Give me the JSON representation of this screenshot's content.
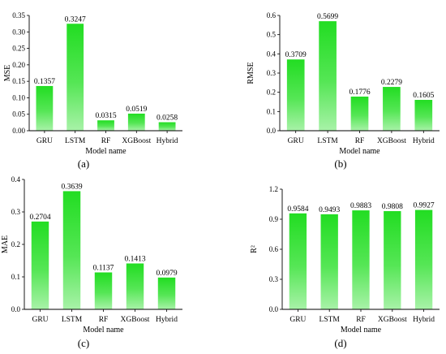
{
  "chart_data": [
    {
      "type": "bar",
      "panel_label": "(a)",
      "categories": [
        "GRU",
        "LSTM",
        "RF",
        "XGBoost",
        "Hybrid"
      ],
      "values": [
        0.1357,
        0.3247,
        0.0315,
        0.0519,
        0.0258
      ],
      "value_labels": [
        "0.1357",
        "0.3247",
        "0.0315",
        "0.0519",
        "0.0258"
      ],
      "ylabel": "MSE",
      "xlabel": "Model name",
      "ylim": [
        0,
        0.35
      ],
      "yticks": [
        0,
        0.05,
        0.1,
        0.15,
        0.2,
        0.25,
        0.3,
        0.35
      ],
      "ytick_labels": [
        "0.00",
        "0.05",
        "0.10",
        "0.15",
        "0.20",
        "0.25",
        "0.30",
        "0.35"
      ],
      "grid": false
    },
    {
      "type": "bar",
      "panel_label": "(b)",
      "categories": [
        "GRU",
        "LSTM",
        "RF",
        "XGBoost",
        "Hybrid"
      ],
      "values": [
        0.3709,
        0.5699,
        0.1776,
        0.2279,
        0.1605
      ],
      "value_labels": [
        "0.3709",
        "0.5699",
        "0.1776",
        "0.2279",
        "0.1605"
      ],
      "ylabel": "RMSE",
      "xlabel": "Model name",
      "ylim": [
        0,
        0.6
      ],
      "yticks": [
        0,
        0.1,
        0.2,
        0.3,
        0.4,
        0.5,
        0.6
      ],
      "ytick_labels": [
        "0.0",
        "0.1",
        "0.2",
        "0.3",
        "0.4",
        "0.5",
        "0.6"
      ],
      "grid": false
    },
    {
      "type": "bar",
      "panel_label": "(c)",
      "categories": [
        "GRU",
        "LSTM",
        "RF",
        "XGBoost",
        "Hybrid"
      ],
      "values": [
        0.2704,
        0.3639,
        0.1137,
        0.1413,
        0.0979
      ],
      "value_labels": [
        "0.2704",
        "0.3639",
        "0.1137",
        "0.1413",
        "0.0979"
      ],
      "ylabel": "MAE",
      "xlabel": "Model name",
      "ylim": [
        0,
        0.4
      ],
      "yticks": [
        0,
        0.1,
        0.2,
        0.3,
        0.4
      ],
      "ytick_labels": [
        "0.0",
        "0.1",
        "0.2",
        "0.3",
        "0.4"
      ],
      "grid": false
    },
    {
      "type": "bar",
      "panel_label": "(d)",
      "categories": [
        "GRU",
        "LSTM",
        "RF",
        "XGBoost",
        "Hybrid"
      ],
      "values": [
        0.9584,
        0.9493,
        0.9883,
        0.9808,
        0.9927
      ],
      "value_labels": [
        "0.9584",
        "0.9493",
        "0.9883",
        "0.9808",
        "0.9927"
      ],
      "ylabel": "R²",
      "xlabel": "Model name",
      "ylim": [
        0,
        1.2
      ],
      "yticks": [
        0,
        0.3,
        0.6,
        0.9,
        1.2
      ],
      "ytick_labels": [
        "0.0",
        "0.3",
        "0.6",
        "0.9",
        "1.2"
      ],
      "grid": false
    }
  ],
  "colors": {
    "bar_top": "#22dd22",
    "bar_bottom": "#a8f2a8",
    "axis": "#000000"
  }
}
